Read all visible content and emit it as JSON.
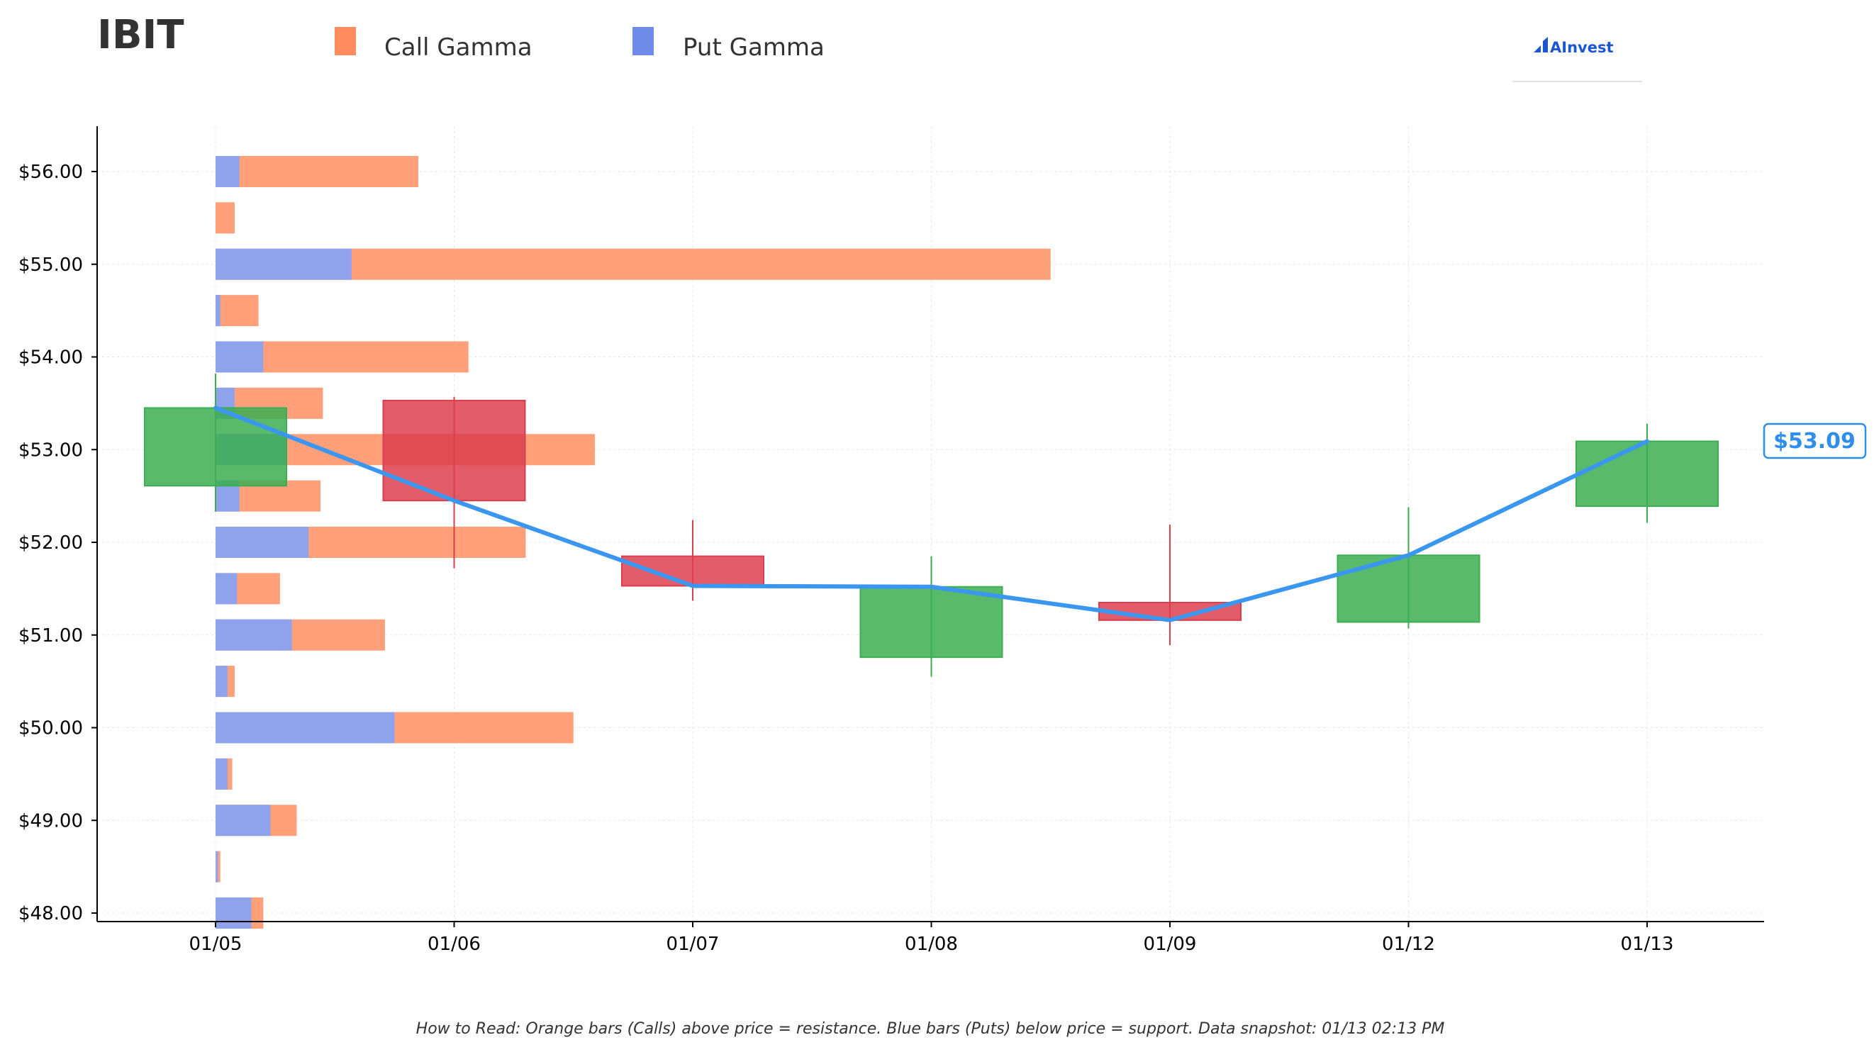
{
  "title": "IBIT",
  "legend": [
    {
      "label": "Call Gamma",
      "color": "#ff8c5e"
    },
    {
      "label": "Put Gamma",
      "color": "#6f8ae8"
    }
  ],
  "logo": {
    "text": "AInvest"
  },
  "price_tag": "$53.09",
  "footer": "How to Read: Orange bars (Calls) above price = resistance. Blue bars (Puts) below price = support. Data snapshot: 01/13 02:13 PM",
  "colors": {
    "call": "#ffa07a",
    "put": "#8ea3ec",
    "up": "#3cae52",
    "down": "#dc3e4e",
    "line": "#3a96ef",
    "price_tag": "#2e8fea"
  },
  "chart_data": {
    "type": "candlestick",
    "x_labels": [
      "01/05",
      "01/06",
      "01/07",
      "01/08",
      "01/09",
      "01/12",
      "01/13"
    ],
    "y_tick_labels": [
      "$48.00",
      "$49.00",
      "$50.00",
      "$51.00",
      "$52.00",
      "$53.00",
      "$54.00",
      "$55.00",
      "$56.00"
    ],
    "ylim": [
      47.92,
      56.48
    ],
    "grid": true,
    "candles": [
      {
        "date": "01/05",
        "open": 52.61,
        "high": 53.82,
        "low": 52.33,
        "close": 53.45
      },
      {
        "date": "01/06",
        "open": 53.53,
        "high": 53.57,
        "low": 51.72,
        "close": 52.45
      },
      {
        "date": "01/07",
        "open": 51.85,
        "high": 52.24,
        "low": 51.37,
        "close": 51.53
      },
      {
        "date": "01/08",
        "open": 50.76,
        "high": 51.85,
        "low": 50.55,
        "close": 51.52
      },
      {
        "date": "01/09",
        "open": 51.35,
        "high": 52.19,
        "low": 50.89,
        "close": 51.16
      },
      {
        "date": "01/12",
        "open": 51.14,
        "high": 52.38,
        "low": 51.07,
        "close": 51.86
      },
      {
        "date": "01/13",
        "open": 52.39,
        "high": 53.28,
        "low": 52.21,
        "close": 53.09
      }
    ],
    "close_line": [
      53.45,
      52.45,
      51.53,
      51.52,
      51.16,
      51.86,
      53.09
    ],
    "gamma_levels": [
      {
        "strike": 56.0,
        "call": 0.85,
        "put": 0.1
      },
      {
        "strike": 55.5,
        "call": 0.08,
        "put": 0.0
      },
      {
        "strike": 55.0,
        "call": 3.5,
        "put": 0.57
      },
      {
        "strike": 54.5,
        "call": 0.18,
        "put": 0.02
      },
      {
        "strike": 54.0,
        "call": 1.06,
        "put": 0.2
      },
      {
        "strike": 53.5,
        "call": 0.45,
        "put": 0.08
      },
      {
        "strike": 53.0,
        "call": 1.59,
        "put": 0.3
      },
      {
        "strike": 52.5,
        "call": 0.44,
        "put": 0.1
      },
      {
        "strike": 52.0,
        "call": 1.3,
        "put": 0.39
      },
      {
        "strike": 51.5,
        "call": 0.27,
        "put": 0.09
      },
      {
        "strike": 51.0,
        "call": 0.71,
        "put": 0.32
      },
      {
        "strike": 50.5,
        "call": 0.08,
        "put": 0.05
      },
      {
        "strike": 50.0,
        "call": 1.5,
        "put": 0.75
      },
      {
        "strike": 49.5,
        "call": 0.07,
        "put": 0.05
      },
      {
        "strike": 49.0,
        "call": 0.34,
        "put": 0.23
      },
      {
        "strike": 48.5,
        "call": 0.02,
        "put": 0.01
      },
      {
        "strike": 48.0,
        "call": 0.2,
        "put": 0.15
      }
    ]
  }
}
